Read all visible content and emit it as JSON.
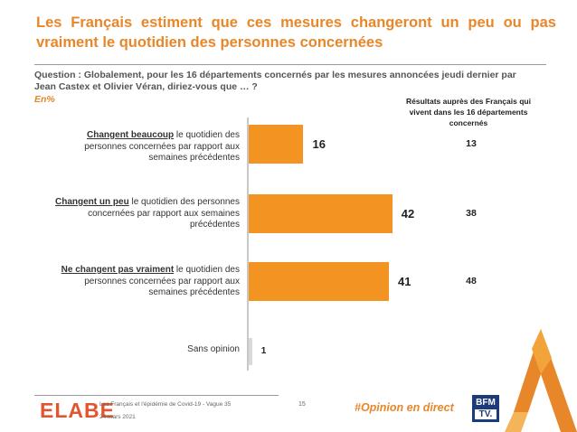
{
  "header": {
    "title": "Les Français estiment que ces mesures changeront un peu ou pas vraiment le quotidien des personnes concernées",
    "question": "Question : Globalement, pour les 16 départements concernés par les mesures annoncées jeudi dernier par Jean Castex et Olivier Véran, diriez-vous que … ?",
    "unit": "En%"
  },
  "subgroup_header": "Résultats auprès des Français qui vivent dans les 16 départements concernés",
  "chart_data": {
    "type": "bar",
    "orientation": "horizontal",
    "categories": [
      {
        "emph": "Changent beaucoup",
        "rest": " le quotidien des personnes concernées par rapport aux semaines précédentes"
      },
      {
        "emph": "Changent un peu",
        "rest": " le quotidien des personnes concernées par rapport aux semaines précédentes"
      },
      {
        "emph": "Ne changent pas vraiment",
        "rest": " le quotidien des personnes concernées par rapport aux semaines précédentes"
      },
      {
        "emph": "",
        "rest": "Sans opinion"
      }
    ],
    "series": [
      {
        "values": [
          16,
          42,
          41,
          1
        ],
        "color": "#F39322"
      }
    ],
    "subgroup_values": [
      "13",
      "38",
      "48",
      ""
    ],
    "xlim": [
      0,
      50
    ],
    "grid": false,
    "legend": "none"
  },
  "footer": {
    "logo": "ELABE",
    "study": "Les Français et l'épidémie de Covid-19 - Vague 35",
    "date": "24 mars 2021",
    "page": "15",
    "hashtag": "#Opinion en direct",
    "partner_line1": "BFM",
    "partner_line2": "TV."
  }
}
